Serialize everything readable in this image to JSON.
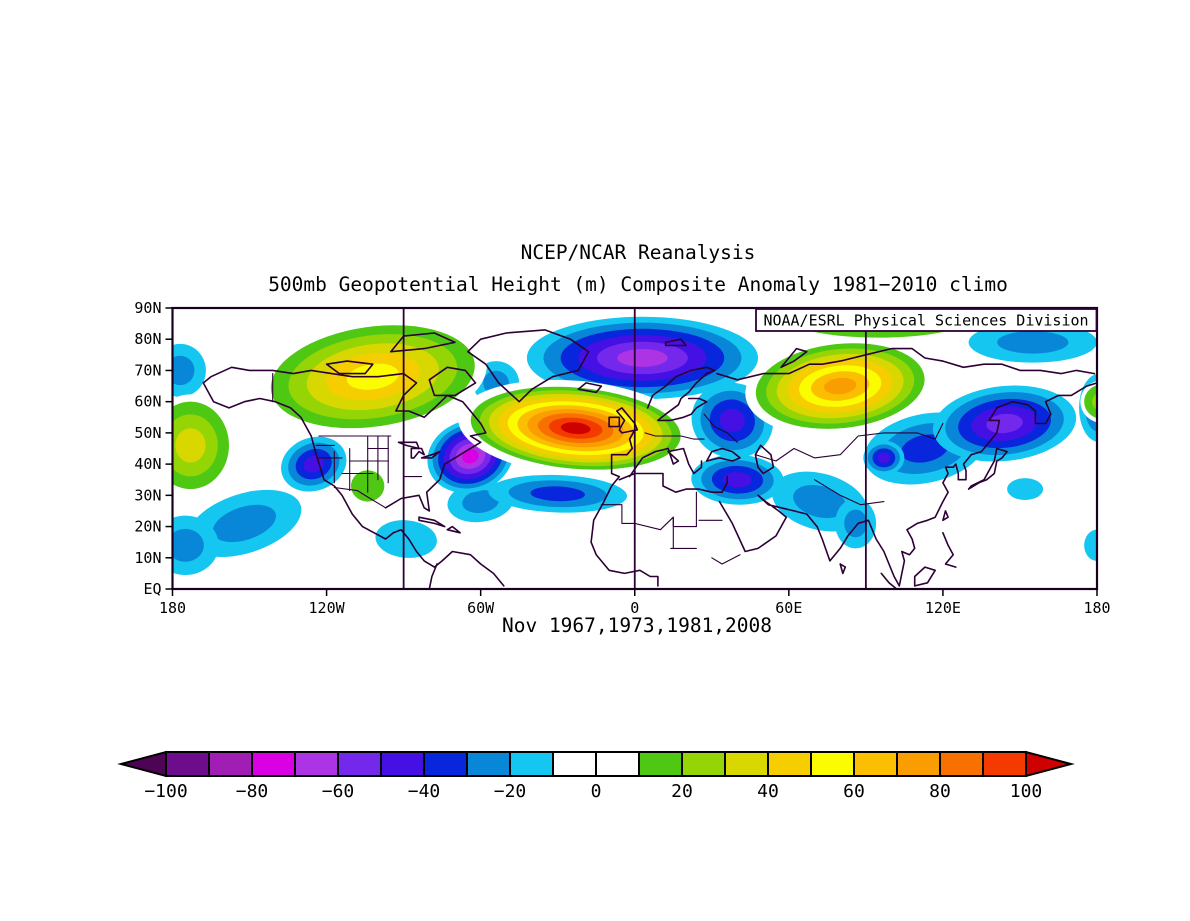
{
  "titles": {
    "line1": "NCEP/NCAR Reanalysis",
    "line2": "500mb Geopotential Height (m) Composite Anomaly 1981−2010 climo"
  },
  "credit": "NOAA/ESRL Physical Sciences Division",
  "composite_label": "Nov 1967,1973,1981,2008",
  "colors": {
    "coastline": "#2D0036",
    "frame": "#1A0020",
    "text": "#000000",
    "background": "#FFFFFF"
  },
  "chart_data": {
    "type": "heatmap",
    "subtype": "filled-contour-map",
    "dataset": "NCEP/NCAR Reanalysis",
    "variable": "500mb Geopotential Height (m) Composite Anomaly",
    "climatology": "1981−2010 climo",
    "composite": "Nov 1967,1973,1981,2008",
    "projection": "equirectangular",
    "lon_range": [
      -180,
      180
    ],
    "lat_range": [
      0,
      90
    ],
    "xticks": [
      "180",
      "120W",
      "60W",
      "0",
      "60E",
      "120E",
      "180"
    ],
    "yticks": [
      "90N",
      "80N",
      "70N",
      "60N",
      "50N",
      "40N",
      "30N",
      "20N",
      "10N",
      "EQ"
    ],
    "meridian_lines_deg": [
      -90,
      0,
      90
    ],
    "units": "m",
    "colorbar": {
      "min": -100,
      "max": 100,
      "step": 10,
      "tick_labels": [
        "−100",
        "−80",
        "−60",
        "−40",
        "−20",
        "0",
        "20",
        "40",
        "60",
        "80",
        "100"
      ],
      "segment_colors": [
        "#6E0D8C",
        "#A01EB4",
        "#DA00E4",
        "#AC34E4",
        "#7428EC",
        "#4410E4",
        "#0826DC",
        "#0887D8",
        "#14C6F0",
        "#FFFFFF",
        "#FFFFFF",
        "#4FC814",
        "#95D506",
        "#D8D800",
        "#F6CE00",
        "#FCFC00",
        "#FBBE00",
        "#FA9D00",
        "#F87100",
        "#F53A00"
      ],
      "below_color": "#4E0454",
      "above_color": "#CE0000"
    },
    "anomaly_centers": [
      {
        "name": "pacific-tropics-low",
        "lon": -152,
        "lat": 21,
        "peak_m": -26,
        "rx_deg": 23,
        "ry_deg": 9.5,
        "rot_deg": -18
      },
      {
        "name": "dateline-tropics-low",
        "lon": -175,
        "lat": 14,
        "peak_m": -26,
        "rx_deg": 13,
        "ry_deg": 9.5,
        "rot_deg": 0
      },
      {
        "name": "bering-arctic-low",
        "lon": -177,
        "lat": 70,
        "peak_m": -26,
        "rx_deg": 10,
        "ry_deg": 8.5,
        "rot_deg": 0
      },
      {
        "name": "east-edge-tropics-low",
        "lon": 180,
        "lat": 14,
        "peak_m": -16,
        "rx_deg": 5,
        "ry_deg": 5,
        "rot_deg": 0
      },
      {
        "name": "east-of-japan-low",
        "lon": 152,
        "lat": 32,
        "peak_m": -16,
        "rx_deg": 7,
        "ry_deg": 3.5,
        "rot_deg": 0
      },
      {
        "name": "central-america-low",
        "lon": -89,
        "lat": 16,
        "peak_m": -18,
        "rx_deg": 12,
        "ry_deg": 6,
        "rot_deg": 5
      },
      {
        "name": "west-atlantic-band-low",
        "lon": -60,
        "lat": 28,
        "peak_m": -22,
        "rx_deg": 13,
        "ry_deg": 6.5,
        "rot_deg": -8
      },
      {
        "name": "subtropical-atlantic-low",
        "lon": -30,
        "lat": 30.5,
        "peak_m": -38,
        "rx_deg": 27,
        "ry_deg": 6,
        "rot_deg": 2
      },
      {
        "name": "davis-strait-low",
        "lon": -54,
        "lat": 66,
        "peak_m": -22,
        "rx_deg": 9,
        "ry_deg": 7,
        "rot_deg": 0
      },
      {
        "name": "west-us-low",
        "lon": -125,
        "lat": 40,
        "peak_m": -42,
        "rx_deg": 13,
        "ry_deg": 8.5,
        "rot_deg": -20
      },
      {
        "name": "northeast-america-low",
        "lon": -64,
        "lat": 42.5,
        "peak_m": -70,
        "rx_deg": 17,
        "ry_deg": 11.5,
        "rot_deg": -18
      },
      {
        "name": "south-asia-low",
        "lon": 72,
        "lat": 28,
        "peak_m": -24,
        "rx_deg": 19,
        "ry_deg": 9,
        "rot_deg": 15
      },
      {
        "name": "india-low",
        "lon": 86,
        "lat": 21,
        "peak_m": -22,
        "rx_deg": 8,
        "ry_deg": 8,
        "rot_deg": 0
      },
      {
        "name": "middle-east-low",
        "lon": 40,
        "lat": 35,
        "peak_m": -44,
        "rx_deg": 18,
        "ry_deg": 8,
        "rot_deg": 2
      },
      {
        "name": "central-asia-band-low",
        "lon": 113,
        "lat": 45,
        "peak_m": -34,
        "rx_deg": 24,
        "ry_deg": 11,
        "rot_deg": -12
      },
      {
        "name": "tibet-low",
        "lon": 97,
        "lat": 42,
        "peak_m": -42,
        "rx_deg": 8,
        "ry_deg": 5.5,
        "rot_deg": 0
      },
      {
        "name": "arctic-pacific-band-low",
        "lon": 155,
        "lat": 79,
        "peak_m": -22,
        "rx_deg": 25,
        "ry_deg": 6.5,
        "rot_deg": 0
      },
      {
        "name": "east-europe-low",
        "lon": 38,
        "lat": 54,
        "peak_m": -48,
        "rx_deg": 16,
        "ry_deg": 12,
        "rot_deg": 18
      },
      {
        "name": "arctic-scandinavia-low",
        "lon": 3,
        "lat": 74,
        "peak_m": -68,
        "rx_deg": 45,
        "ry_deg": 13.2,
        "rot_deg": 0
      },
      {
        "name": "east-edge-blue-low",
        "lon": 181,
        "lat": 58,
        "peak_m": -36,
        "rx_deg": 8,
        "ry_deg": 11,
        "rot_deg": 0
      },
      {
        "name": "east-asia-low",
        "lon": 144,
        "lat": 53,
        "peak_m": -56,
        "rx_deg": 28,
        "ry_deg": 12,
        "rot_deg": -6
      },
      {
        "name": "canada-high",
        "lon": -102,
        "lat": 68,
        "peak_m": 56,
        "rx_deg": 40,
        "ry_deg": 16,
        "rot_deg": -8,
        "halo": true
      },
      {
        "name": "gulf-of-alaska-high",
        "lon": -173,
        "lat": 46,
        "peak_m": 36,
        "rx_deg": 15,
        "ry_deg": 14,
        "rot_deg": 0,
        "halo": true
      },
      {
        "name": "southwest-us-high",
        "lon": -104,
        "lat": 33,
        "peak_m": 16,
        "rx_deg": 6.5,
        "ry_deg": 5,
        "rot_deg": 0,
        "halo": true
      },
      {
        "name": "west-siberia-high",
        "lon": 80,
        "lat": 65,
        "peak_m": 76,
        "rx_deg": 33,
        "ry_deg": 13.5,
        "rot_deg": -6,
        "halo": true
      },
      {
        "name": "arctic-green-band-high",
        "lon": 95,
        "lat": 87,
        "peak_m": 16,
        "rx_deg": 36,
        "ry_deg": 6.5,
        "rot_deg": 0
      },
      {
        "name": "dateline-green-high",
        "lon": 182,
        "lat": 60,
        "peak_m": 26,
        "rx_deg": 7,
        "ry_deg": 5.5,
        "rot_deg": 0,
        "halo": true
      },
      {
        "name": "north-atlantic-high",
        "lon": -23,
        "lat": 51.5,
        "peak_m": 103,
        "rx_deg": 41,
        "ry_deg": 13,
        "rot_deg": 5,
        "halo": true
      }
    ]
  }
}
